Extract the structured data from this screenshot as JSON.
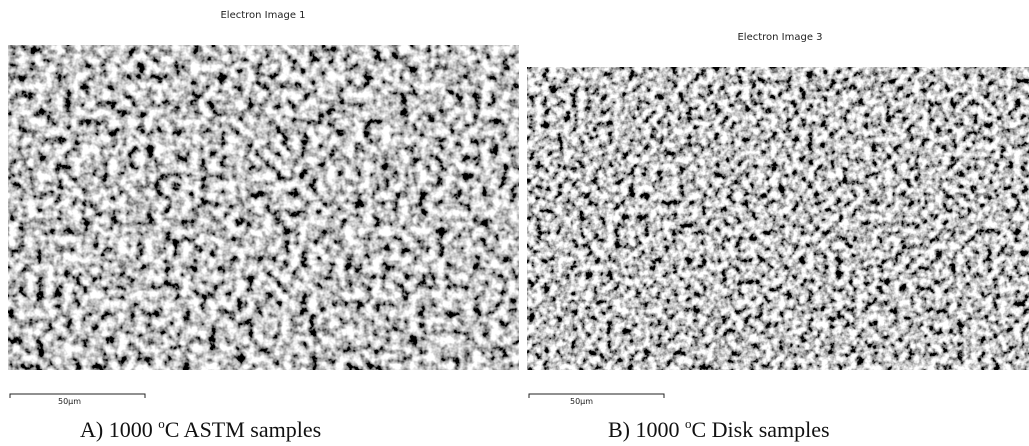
{
  "panels": [
    {
      "title": "Electron Image 1",
      "scale_label": "50µm",
      "caption": {
        "prefix": "A) 1000 ",
        "sup": "o",
        "suffix": "C ASTM samples"
      }
    },
    {
      "title": "Electron Image 3",
      "scale_label": "50µm",
      "caption": {
        "prefix": "B) 1000 ",
        "sup": "o",
        "suffix": "C Disk samples"
      }
    }
  ]
}
